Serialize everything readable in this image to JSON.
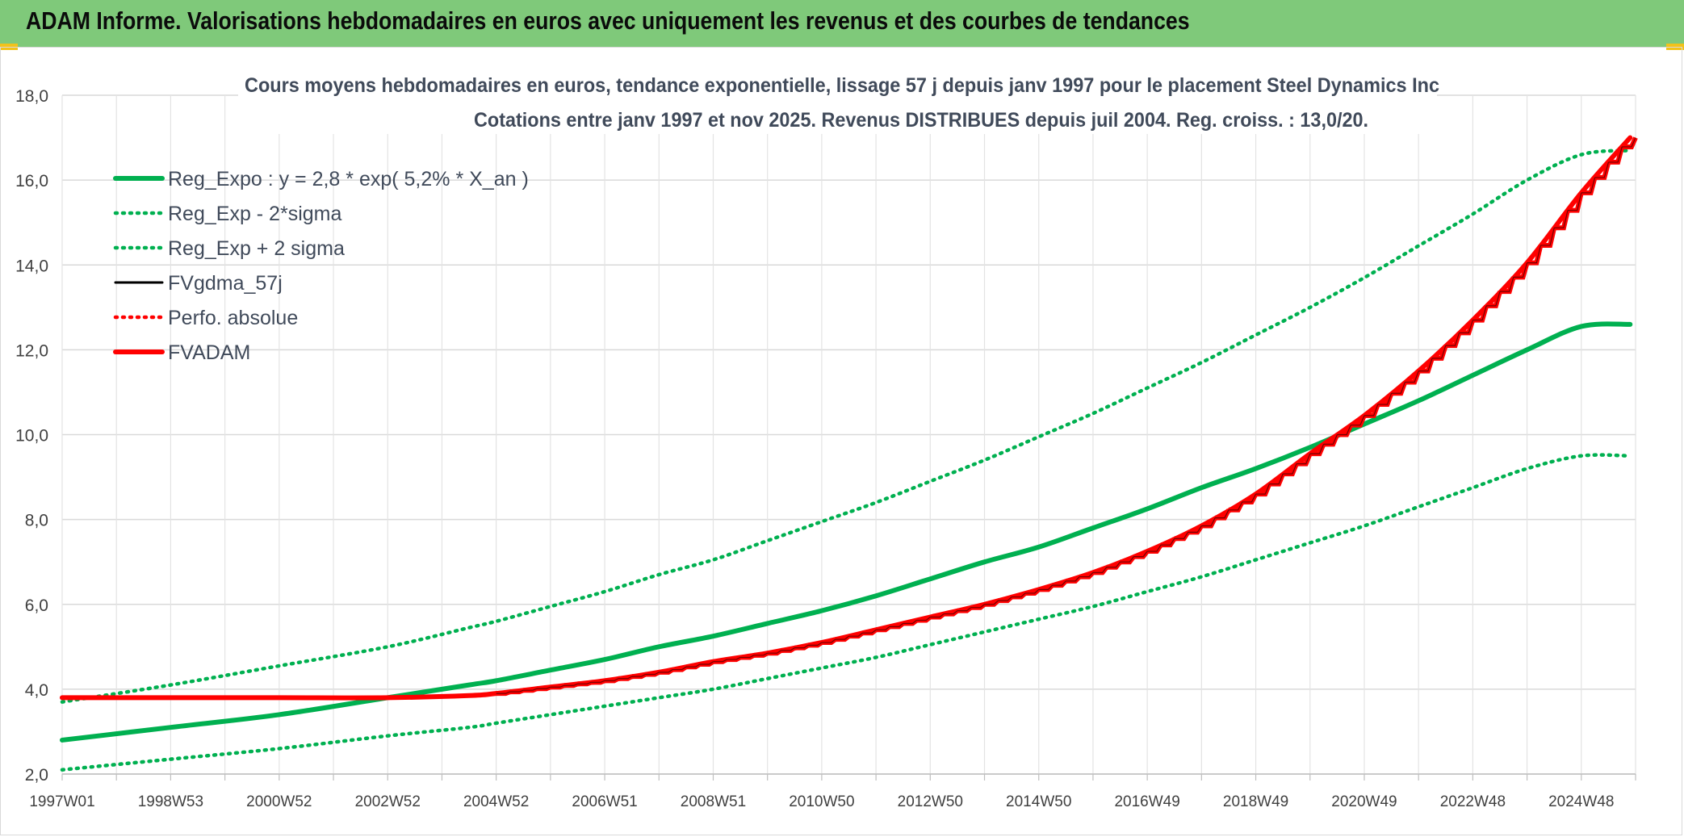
{
  "header": {
    "title": "ADAM Informe. Valorisations hebdomadaires en euros avec uniquement les revenus et des courbes de tendances"
  },
  "chart_data": {
    "type": "line",
    "title": "Cours moyens hebdomadaires en euros, tendance exponentielle, lissage 57 j depuis janv 1997 pour le placement Steel Dynamics Inc",
    "subtitle": "Cotations entre janv 1997 et nov 2025. Revenus DISTRIBUES depuis juil 2004. Reg. croiss. : 13,0/20.",
    "xlabel": "",
    "ylabel": "",
    "ylim": [
      2.0,
      18.0
    ],
    "yticks": [
      "2,0",
      "4,0",
      "6,0",
      "8,0",
      "10,0",
      "12,0",
      "14,0",
      "16,0",
      "18,0"
    ],
    "xticks": [
      "1997W01",
      "1998W53",
      "2000W52",
      "2002W52",
      "2004W52",
      "2006W51",
      "2008W51",
      "2010W50",
      "2012W50",
      "2014W50",
      "2016W49",
      "2018W49",
      "2020W49",
      "2022W48",
      "2024W48"
    ],
    "xlim": [
      1997.0,
      2026.0
    ],
    "x": [
      1997.0,
      1999.0,
      2001.0,
      2003.0,
      2004.5,
      2005.0,
      2006.0,
      2007.0,
      2008.0,
      2009.0,
      2010.0,
      2011.0,
      2012.0,
      2013.0,
      2014.0,
      2015.0,
      2016.0,
      2017.0,
      2018.0,
      2019.0,
      2020.0,
      2021.0,
      2022.0,
      2023.0,
      2024.0,
      2025.0,
      2025.9
    ],
    "series": [
      {
        "name": "Reg_Expo : y = 2,8 * exp( 5,2% *  X_an )",
        "style": "solid-thick",
        "color": "#00b050",
        "values": [
          2.8,
          3.1,
          3.4,
          3.8,
          4.1,
          4.2,
          4.45,
          4.7,
          5.0,
          5.25,
          5.55,
          5.85,
          6.2,
          6.6,
          7.0,
          7.35,
          7.8,
          8.25,
          8.75,
          9.2,
          9.7,
          10.25,
          10.8,
          11.4,
          12.0,
          12.55,
          12.6
        ]
      },
      {
        "name": "Reg_Exp - 2*sigma",
        "style": "dotted",
        "color": "#00b050",
        "values": [
          2.1,
          2.35,
          2.6,
          2.9,
          3.1,
          3.2,
          3.4,
          3.6,
          3.8,
          4.0,
          4.25,
          4.5,
          4.75,
          5.05,
          5.35,
          5.65,
          5.95,
          6.3,
          6.65,
          7.05,
          7.45,
          7.85,
          8.3,
          8.75,
          9.2,
          9.5,
          9.5
        ]
      },
      {
        "name": "Reg_Exp + 2 sigma",
        "style": "dotted",
        "color": "#00b050",
        "values": [
          3.7,
          4.1,
          4.55,
          5.0,
          5.45,
          5.6,
          5.95,
          6.3,
          6.7,
          7.05,
          7.5,
          7.95,
          8.4,
          8.9,
          9.4,
          9.95,
          10.5,
          11.1,
          11.7,
          12.35,
          13.0,
          13.7,
          14.45,
          15.2,
          16.0,
          16.6,
          16.7
        ]
      },
      {
        "name": "FVgdma_57j",
        "style": "solid",
        "color": "#000000",
        "values": [
          3.8,
          3.8,
          3.8,
          3.8,
          3.85,
          3.9,
          4.05,
          4.2,
          4.4,
          4.65,
          4.85,
          5.1,
          5.4,
          5.7,
          6.0,
          6.35,
          6.75,
          7.25,
          7.85,
          8.6,
          9.55,
          10.45,
          11.5,
          12.7,
          14.05,
          15.7,
          17.0
        ]
      },
      {
        "name": "Perfo. absolue",
        "style": "dotted",
        "color": "#ff0000",
        "values": [
          3.8,
          3.8,
          3.8,
          3.8,
          3.85,
          3.9,
          4.05,
          4.2,
          4.4,
          4.65,
          4.85,
          5.1,
          5.4,
          5.7,
          6.0,
          6.35,
          6.75,
          7.25,
          7.85,
          8.6,
          9.55,
          10.45,
          11.5,
          12.7,
          14.05,
          15.7,
          17.0
        ]
      },
      {
        "name": "FVADAM",
        "style": "solid-thick",
        "color": "#ff0000",
        "values": [
          3.8,
          3.8,
          3.8,
          3.8,
          3.85,
          3.9,
          4.05,
          4.2,
          4.4,
          4.65,
          4.85,
          5.1,
          5.4,
          5.7,
          6.0,
          6.35,
          6.75,
          7.25,
          7.85,
          8.6,
          9.55,
          10.45,
          11.5,
          12.7,
          14.05,
          15.7,
          17.0
        ]
      }
    ],
    "legend_position": "top-left",
    "grid": true
  },
  "colors": {
    "banner": "#7fc97a",
    "accent": "#f2c21b"
  }
}
